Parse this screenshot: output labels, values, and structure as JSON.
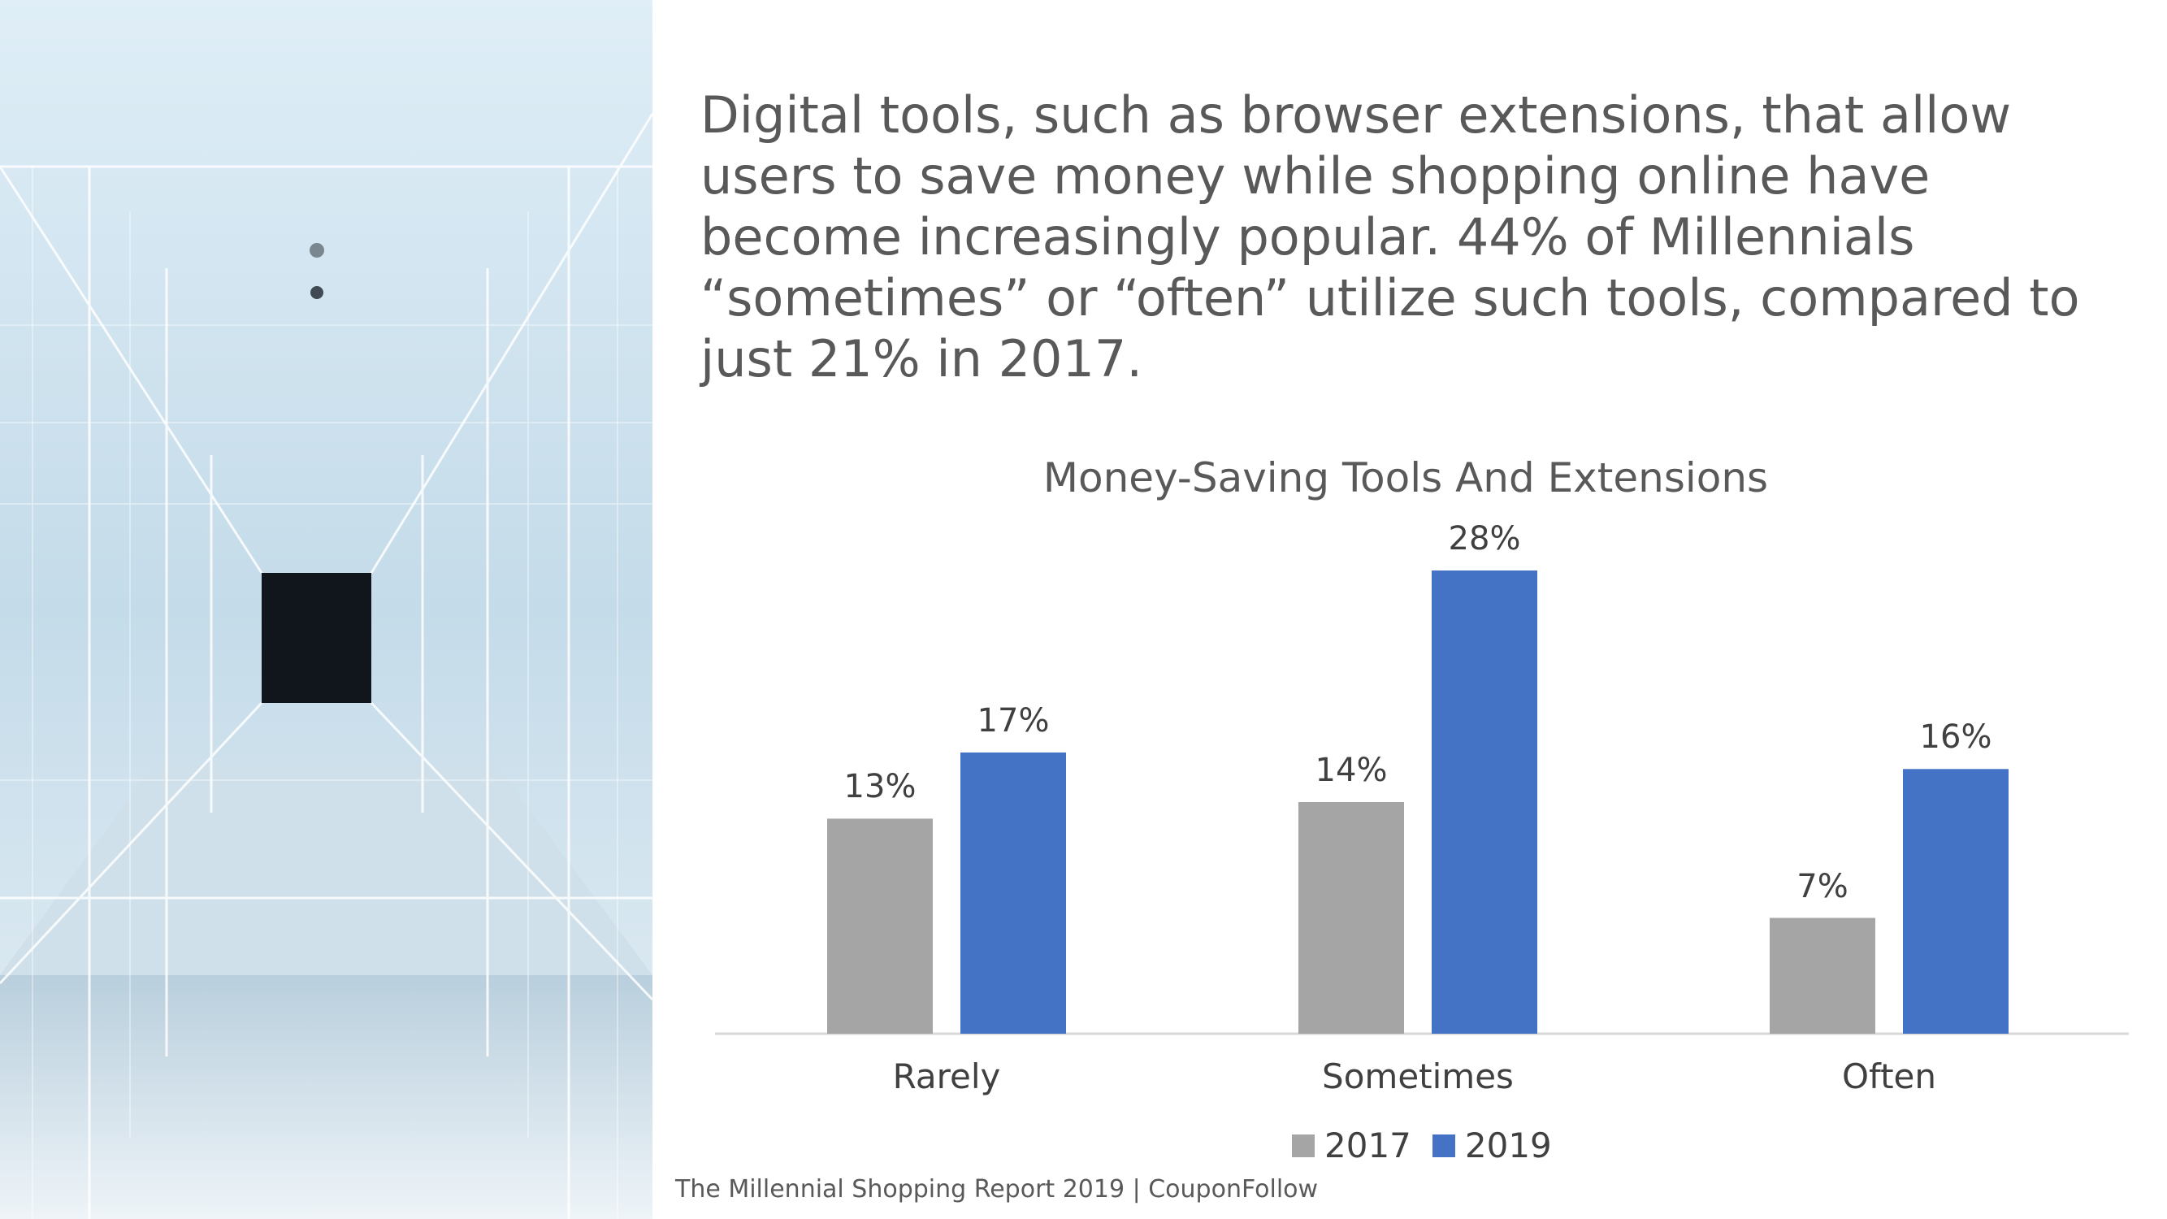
{
  "headline": "Digital tools, such as browser extensions, that allow users to save money while shopping online have become increasingly popular. 44% of Millennials “sometimes” or “often” utilize such tools, compared to just 21% in 2017.",
  "footer": "The Millennial Shopping Report 2019 | CouponFollow",
  "colors": {
    "series_2017": "#A5A5A5",
    "series_2019": "#4472C4",
    "text": "#595959"
  },
  "chart_data": {
    "type": "bar",
    "title": "Money-Saving Tools And Extensions",
    "categories": [
      "Rarely",
      "Sometimes",
      "Often"
    ],
    "series": [
      {
        "name": "2017",
        "values": [
          13,
          14,
          7
        ],
        "labels": [
          "13%",
          "14%",
          "7%"
        ]
      },
      {
        "name": "2019",
        "values": [
          17,
          28,
          16
        ],
        "labels": [
          "17%",
          "28%",
          "16%"
        ]
      }
    ],
    "ylim": [
      0,
      30
    ],
    "grid": false,
    "legend": "bottom"
  }
}
